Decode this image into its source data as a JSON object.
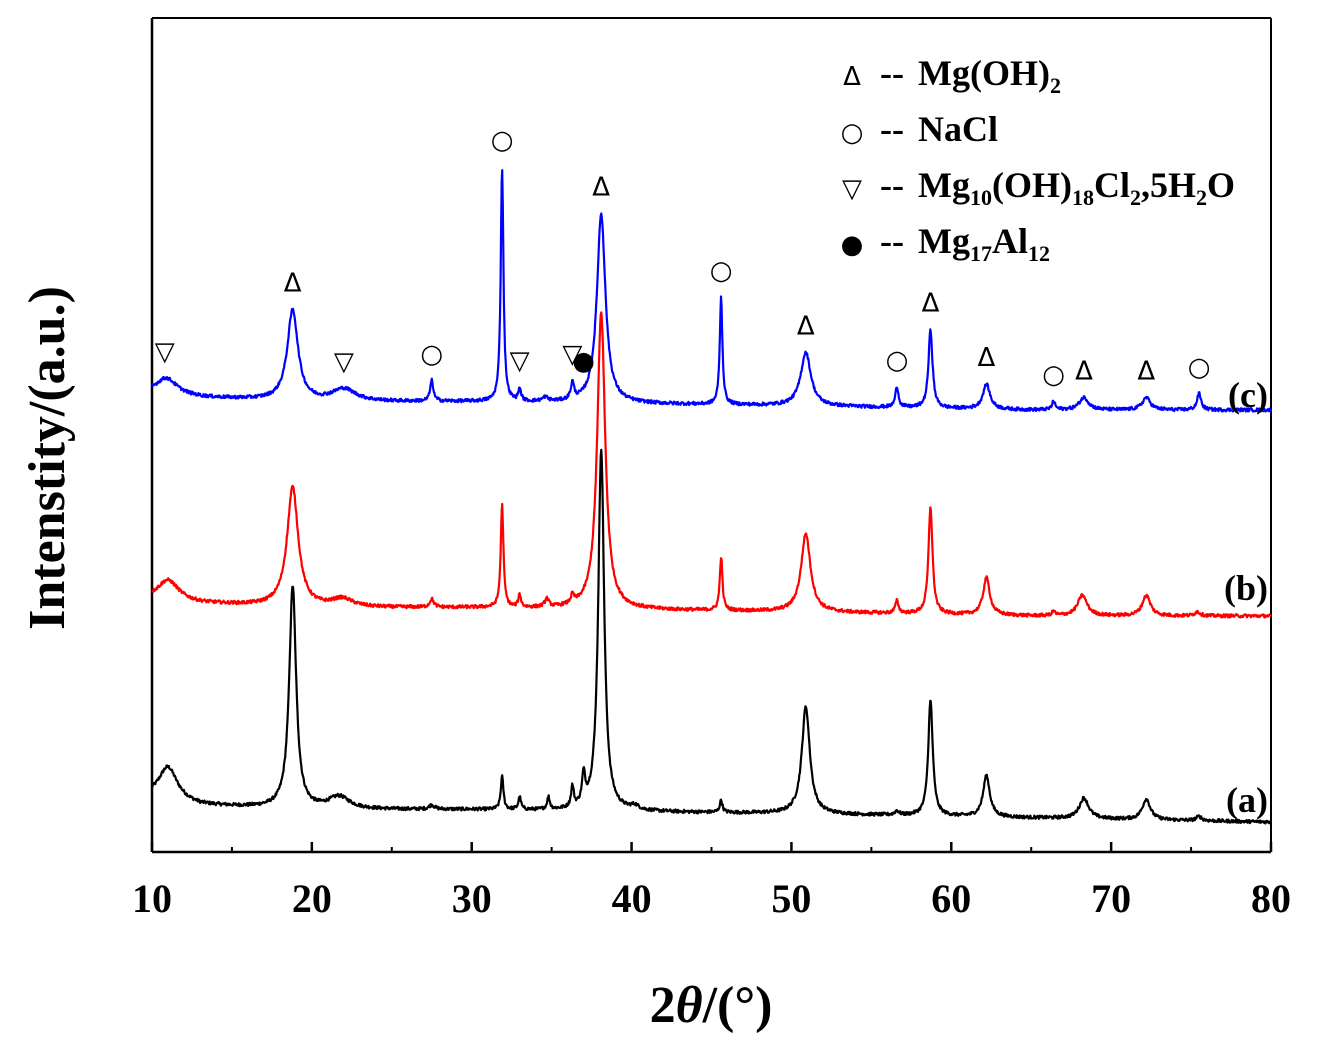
{
  "chart_data": {
    "type": "line",
    "xlabel_prefix": "2",
    "xlabel_theta": "θ",
    "xlabel_unit": "/(°)",
    "ylabel": "Intenstity/(a.u.)",
    "xlim": [
      10,
      80
    ],
    "xticks": [
      10,
      20,
      30,
      40,
      50,
      60,
      70,
      80
    ],
    "yticks_shown": false,
    "baselines": {
      "a": 0.0,
      "b": 0.5,
      "c": 1.0
    },
    "series": [
      {
        "name": "(a)",
        "color": "#000000",
        "offset": 0.0,
        "background": [
          [
            10,
            0.06
          ],
          [
            13,
            0.04
          ],
          [
            20,
            0.03
          ],
          [
            30,
            0.03
          ],
          [
            50,
            0.02
          ],
          [
            65,
            0.01
          ],
          [
            80,
            0.0
          ]
        ],
        "peaks": [
          {
            "x": 11.0,
            "h": 0.08,
            "w": 0.7
          },
          {
            "x": 18.8,
            "h": 0.54,
            "w": 0.26
          },
          {
            "x": 21.7,
            "h": 0.03,
            "w": 0.8
          },
          {
            "x": 27.5,
            "h": 0.01,
            "w": 0.2
          },
          {
            "x": 31.9,
            "h": 0.08,
            "w": 0.1
          },
          {
            "x": 33.0,
            "h": 0.03,
            "w": 0.1
          },
          {
            "x": 34.8,
            "h": 0.03,
            "w": 0.1
          },
          {
            "x": 36.3,
            "h": 0.05,
            "w": 0.1
          },
          {
            "x": 37.0,
            "h": 0.07,
            "w": 0.12
          },
          {
            "x": 38.1,
            "h": 0.88,
            "w": 0.22
          },
          {
            "x": 40.2,
            "h": 0.01,
            "w": 0.3
          },
          {
            "x": 45.6,
            "h": 0.03,
            "w": 0.1
          },
          {
            "x": 50.9,
            "h": 0.26,
            "w": 0.3
          },
          {
            "x": 56.6,
            "h": 0.01,
            "w": 0.15
          },
          {
            "x": 58.7,
            "h": 0.28,
            "w": 0.17
          },
          {
            "x": 62.2,
            "h": 0.1,
            "w": 0.25
          },
          {
            "x": 68.3,
            "h": 0.05,
            "w": 0.35
          },
          {
            "x": 72.2,
            "h": 0.05,
            "w": 0.3
          },
          {
            "x": 75.5,
            "h": 0.01,
            "w": 0.2
          }
        ]
      },
      {
        "name": "(b)",
        "color": "#ff0000",
        "offset": 0.5,
        "background": [
          [
            10,
            0.04
          ],
          [
            13,
            0.03
          ],
          [
            20,
            0.02
          ],
          [
            30,
            0.02
          ],
          [
            50,
            0.01
          ],
          [
            65,
            0.0
          ],
          [
            80,
            0.0
          ]
        ],
        "peaks": [
          {
            "x": 11.0,
            "h": 0.05,
            "w": 0.8
          },
          {
            "x": 18.8,
            "h": 0.29,
            "w": 0.42
          },
          {
            "x": 21.9,
            "h": 0.02,
            "w": 0.8
          },
          {
            "x": 27.5,
            "h": 0.02,
            "w": 0.15
          },
          {
            "x": 31.9,
            "h": 0.25,
            "w": 0.1
          },
          {
            "x": 33.0,
            "h": 0.03,
            "w": 0.1
          },
          {
            "x": 34.7,
            "h": 0.02,
            "w": 0.15
          },
          {
            "x": 36.3,
            "h": 0.02,
            "w": 0.12
          },
          {
            "x": 38.1,
            "h": 0.72,
            "w": 0.3
          },
          {
            "x": 45.6,
            "h": 0.13,
            "w": 0.1
          },
          {
            "x": 50.9,
            "h": 0.19,
            "w": 0.35
          },
          {
            "x": 56.6,
            "h": 0.03,
            "w": 0.12
          },
          {
            "x": 58.7,
            "h": 0.26,
            "w": 0.15
          },
          {
            "x": 62.2,
            "h": 0.09,
            "w": 0.25
          },
          {
            "x": 66.4,
            "h": 0.01,
            "w": 0.12
          },
          {
            "x": 68.2,
            "h": 0.05,
            "w": 0.35
          },
          {
            "x": 72.2,
            "h": 0.05,
            "w": 0.3
          },
          {
            "x": 75.4,
            "h": 0.01,
            "w": 0.2
          }
        ]
      },
      {
        "name": "(c)",
        "color": "#0000ff",
        "offset": 1.0,
        "background": [
          [
            10,
            0.04
          ],
          [
            13,
            0.03
          ],
          [
            20,
            0.02
          ],
          [
            30,
            0.02
          ],
          [
            50,
            0.01
          ],
          [
            65,
            0.0
          ],
          [
            80,
            0.0
          ]
        ],
        "peaks": [
          {
            "x": 10.9,
            "h": 0.04,
            "w": 0.8
          },
          {
            "x": 18.8,
            "h": 0.22,
            "w": 0.4
          },
          {
            "x": 22.0,
            "h": 0.03,
            "w": 0.9
          },
          {
            "x": 27.5,
            "h": 0.05,
            "w": 0.12
          },
          {
            "x": 31.9,
            "h": 0.57,
            "w": 0.1
          },
          {
            "x": 33.0,
            "h": 0.03,
            "w": 0.1
          },
          {
            "x": 34.6,
            "h": 0.01,
            "w": 0.2
          },
          {
            "x": 36.3,
            "h": 0.04,
            "w": 0.12
          },
          {
            "x": 38.1,
            "h": 0.46,
            "w": 0.32
          },
          {
            "x": 45.6,
            "h": 0.26,
            "w": 0.1
          },
          {
            "x": 50.9,
            "h": 0.13,
            "w": 0.38
          },
          {
            "x": 56.6,
            "h": 0.05,
            "w": 0.12
          },
          {
            "x": 58.7,
            "h": 0.19,
            "w": 0.15
          },
          {
            "x": 62.2,
            "h": 0.06,
            "w": 0.27
          },
          {
            "x": 66.4,
            "h": 0.02,
            "w": 0.12
          },
          {
            "x": 68.3,
            "h": 0.03,
            "w": 0.35
          },
          {
            "x": 72.2,
            "h": 0.03,
            "w": 0.3
          },
          {
            "x": 75.5,
            "h": 0.04,
            "w": 0.15
          }
        ]
      }
    ],
    "phase_legend": [
      {
        "symbol": "Δ",
        "dash": "--",
        "label_parts": [
          [
            "Mg(OH)",
            ""
          ],
          [
            "2",
            "sub"
          ]
        ]
      },
      {
        "symbol": "○",
        "dash": "--",
        "label_parts": [
          [
            "NaCl",
            ""
          ]
        ]
      },
      {
        "symbol": "▽",
        "dash": "--",
        "label_parts": [
          [
            "Mg",
            ""
          ],
          [
            "10",
            "sub"
          ],
          [
            "(OH)",
            ""
          ],
          [
            "18",
            "sub"
          ],
          [
            "Cl",
            ""
          ],
          [
            "2",
            "sub"
          ],
          [
            ",5H",
            ""
          ],
          [
            "2",
            "sub"
          ],
          [
            "O",
            ""
          ]
        ]
      },
      {
        "symbol": "●",
        "dash": "--",
        "label_parts": [
          [
            "Mg",
            ""
          ],
          [
            "17",
            "sub"
          ],
          [
            "Al",
            ""
          ],
          [
            "12",
            "sub"
          ]
        ]
      }
    ],
    "markers_on_c": [
      {
        "x": 10.8,
        "symbol": "▽"
      },
      {
        "x": 18.8,
        "symbol": "Δ"
      },
      {
        "x": 22.0,
        "symbol": "▽"
      },
      {
        "x": 27.5,
        "symbol": "○"
      },
      {
        "x": 31.9,
        "symbol": "○"
      },
      {
        "x": 33.0,
        "symbol": "▽"
      },
      {
        "x": 36.3,
        "symbol": "▽"
      },
      {
        "x": 37.0,
        "symbol": "●"
      },
      {
        "x": 38.1,
        "symbol": "Δ"
      },
      {
        "x": 45.6,
        "symbol": "○"
      },
      {
        "x": 50.9,
        "symbol": "Δ"
      },
      {
        "x": 56.6,
        "symbol": "○"
      },
      {
        "x": 58.7,
        "symbol": "Δ"
      },
      {
        "x": 62.2,
        "symbol": "Δ"
      },
      {
        "x": 66.4,
        "symbol": "○"
      },
      {
        "x": 68.3,
        "symbol": "Δ"
      },
      {
        "x": 72.2,
        "symbol": "Δ"
      },
      {
        "x": 75.5,
        "symbol": "○"
      }
    ]
  }
}
